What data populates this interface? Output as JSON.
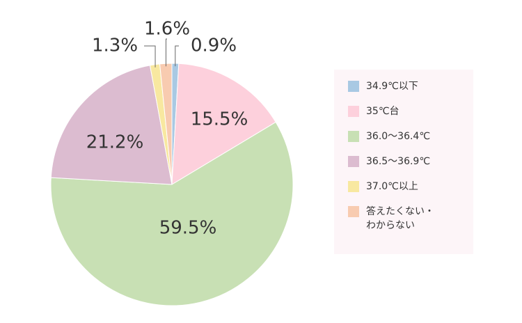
{
  "chart_data": {
    "type": "pie",
    "categories": [
      "34.9℃以下",
      "35℃台",
      "36.0～36.4℃",
      "36.5～36.9℃",
      "37.0℃以上",
      "答えたくない・わからない"
    ],
    "values": [
      0.9,
      15.5,
      59.5,
      21.2,
      1.3,
      1.6
    ],
    "value_labels": [
      "0.9%",
      "15.5%",
      "59.5%",
      "21.2%",
      "1.3%",
      "1.6%"
    ],
    "colors": [
      "#a9c9e3",
      "#fdd0dc",
      "#c8e0b4",
      "#dcbcd0",
      "#f8e8a0",
      "#f8cbb0"
    ]
  }
}
